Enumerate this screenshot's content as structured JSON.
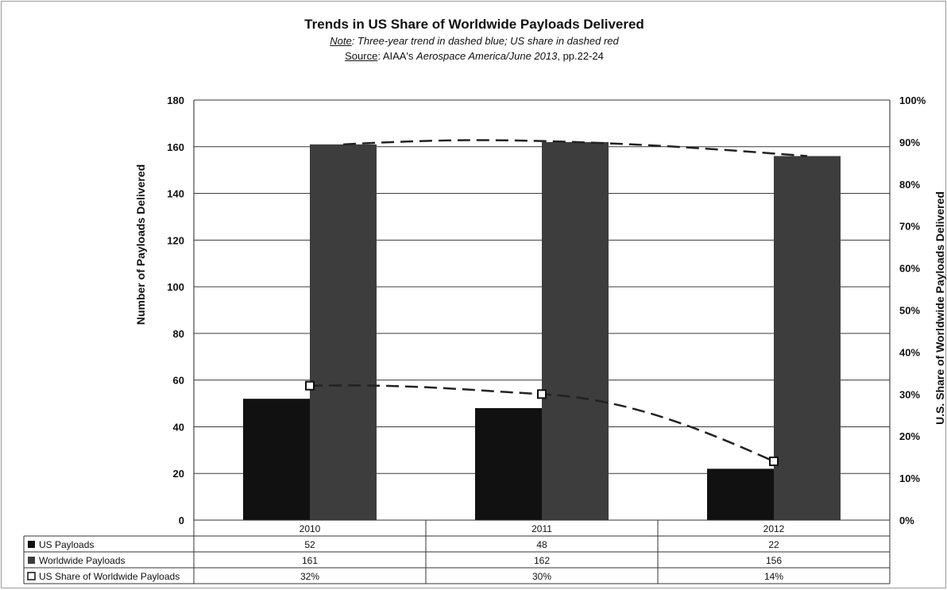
{
  "chart_data": {
    "type": "bar",
    "title": "Trends in US Share of Worldwide Payloads Delivered",
    "note": {
      "label": "Note",
      "text": ": Three-year trend in dashed blue; US share in dashed red"
    },
    "source": {
      "label": "Source",
      "text_before": ": AIAA's ",
      "italic_text": "Aerospace America/June 2013",
      "text_after": ", pp.22-24"
    },
    "categories": [
      "2010",
      "2011",
      "2012"
    ],
    "series": [
      {
        "name": "US Payloads",
        "type": "bar",
        "axis": "left",
        "values": [
          52,
          48,
          22
        ],
        "display": [
          "52",
          "48",
          "22"
        ],
        "color": "#111111"
      },
      {
        "name": "Worldwide Payloads",
        "type": "bar",
        "axis": "left",
        "values": [
          161,
          162,
          156
        ],
        "display": [
          "161",
          "162",
          "156"
        ],
        "color": "#3d3d3d"
      },
      {
        "name": "US Share of Worldwide Payloads",
        "type": "line",
        "axis": "right",
        "values": [
          32,
          30,
          14
        ],
        "display": [
          "32%",
          "30%",
          "14%"
        ],
        "color": "#222222"
      }
    ],
    "ylabel": "Number of Payloads Delivered",
    "ylim": [
      0,
      180
    ],
    "yticks": [
      "0",
      "20",
      "40",
      "60",
      "80",
      "100",
      "120",
      "140",
      "160",
      "180"
    ],
    "y2label": "U.S. Share of Worldwide Payloads Delivered",
    "y2lim": [
      0,
      100
    ],
    "y2ticks": [
      "0%",
      "10%",
      "20%",
      "30%",
      "40%",
      "50%",
      "60%",
      "70%",
      "80%",
      "90%",
      "100%"
    ],
    "trendlines": [
      {
        "of": "Worldwide Payloads",
        "style": "dashed"
      },
      {
        "of": "US Share of Worldwide Payloads",
        "style": "dashed"
      }
    ],
    "grid": true,
    "legend": "data-table-below"
  }
}
